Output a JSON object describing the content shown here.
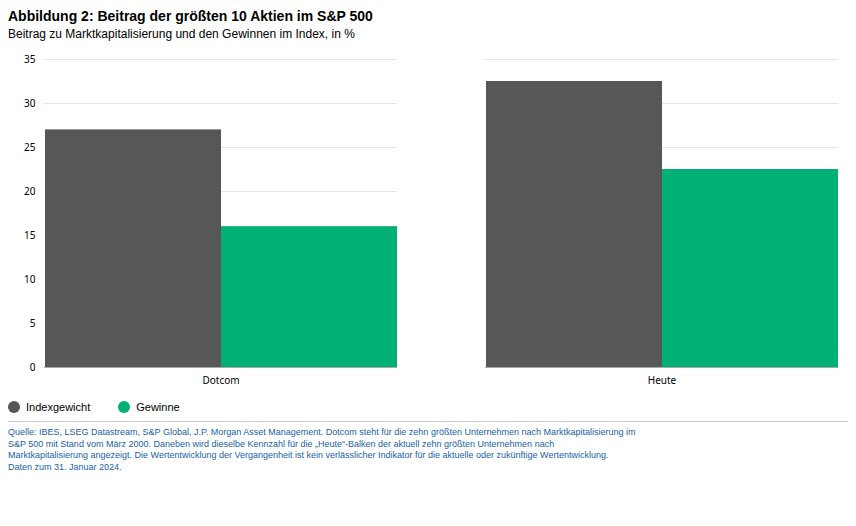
{
  "chart_data": {
    "type": "bar",
    "title": "Abbildung 2: Beitrag der größten 10 Aktien im S&P 500",
    "subtitle": "Beitrag zu Marktkapitalisierung und den Gewinnen im Index, in %",
    "categories": [
      "Dotcom",
      "Heute"
    ],
    "series": [
      {
        "name": "Indexgewicht",
        "color": "#555759",
        "values": [
          27,
          32.5
        ]
      },
      {
        "name": "Gewinne",
        "color": "#00b074",
        "values": [
          16,
          22.5
        ]
      }
    ],
    "ylim": [
      0,
      35
    ],
    "yticks": [
      0,
      5,
      10,
      15,
      20,
      25,
      30,
      35
    ],
    "grid": true,
    "legend": "bottom",
    "footnote": [
      "Quelle: IBES, LSEG Datastream, S&P Global, J.P. Morgan Asset Management. Dotcom steht für die zehn größten Unternehmen nach Marktkapitalisierung im",
      "S&P 500 mit Stand vom März 2000. Daneben wird dieselbe Kennzahl für die „Heute“-Balken der aktuell zehn größten Unternehmen nach",
      "Marktkapitalisierung angezeigt. Die Wertentwicklung der Vergangenheit ist kein verlässlicher Indikator für die aktuelle oder zukünftige Wertentwicklung.",
      "Daten zum 31. Januar 2024."
    ]
  }
}
